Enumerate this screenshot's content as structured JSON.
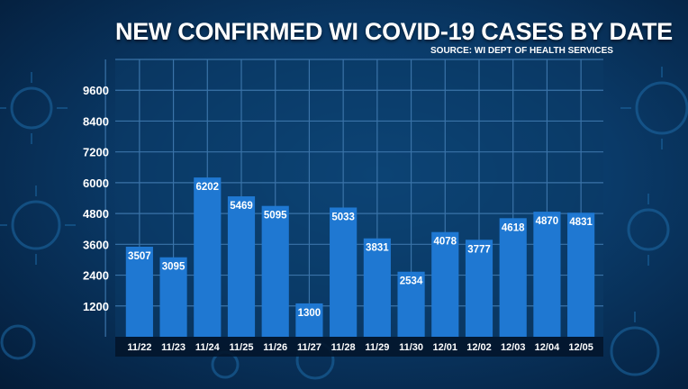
{
  "header": {
    "title": "NEW CONFIRMED WI COVID-19 CASES BY DATE",
    "source": "SOURCE: WI DEPT OF HEALTH SERVICES"
  },
  "colors": {
    "bar": "#1f78d2",
    "grid": "#3a73a8",
    "plot_background": "#0b3a66",
    "xaxis_band": "#03152b"
  },
  "chart_data": {
    "type": "bar",
    "categories": [
      "11/22",
      "11/23",
      "11/24",
      "11/25",
      "11/26",
      "11/27",
      "11/28",
      "11/29",
      "11/30",
      "12/01",
      "12/02",
      "12/03",
      "12/04",
      "12/05"
    ],
    "values": [
      3507,
      3095,
      6202,
      5469,
      5095,
      1300,
      5033,
      3831,
      2534,
      4078,
      3777,
      4618,
      4870,
      4831
    ],
    "data_labels": [
      "3507",
      "3095",
      "6202",
      "5469",
      "5095",
      "1300",
      "5033",
      "3831",
      "2534",
      "4078",
      "3777",
      "4618",
      "4870",
      "4831"
    ],
    "title": "NEW CONFIRMED WI COVID-19 CASES BY DATE",
    "xlabel": "",
    "ylabel": "",
    "yticks": [
      1200,
      2400,
      3600,
      4800,
      6000,
      7200,
      8400,
      9600
    ],
    "ytick_labels": [
      "1200",
      "2400",
      "3600",
      "4800",
      "6000",
      "7200",
      "8400",
      "9600"
    ],
    "ylim": [
      0,
      10800
    ],
    "grid": true,
    "legend": "none"
  }
}
